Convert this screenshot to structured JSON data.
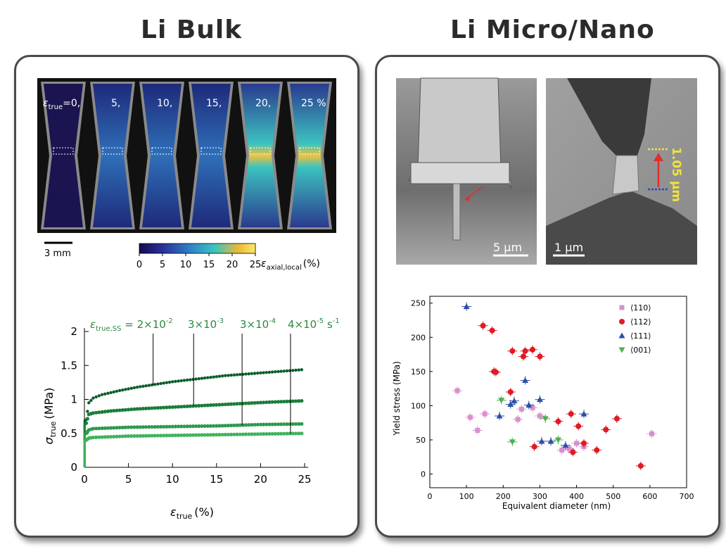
{
  "headings": {
    "left": "Li Bulk",
    "right": "Li Micro/Nano"
  },
  "colors": {
    "dark_green": "#0b5d2a",
    "mid_green": "#1a7d3a",
    "green": "#2e9a4e",
    "light_green": "#3fb35c",
    "label_green": "#2d8a3e",
    "pink": "#d98fd0",
    "red": "#e01b24",
    "blue": "#2b4fa8",
    "bright_green": "#4caf50"
  },
  "bulk_images": {
    "strain_labels": [
      "0,",
      "5,",
      "10,",
      "15,",
      "20,",
      "25 %"
    ],
    "strain_prefix": "ε",
    "strain_prefix_sub": "true",
    "strain_prefix_eq": "=0,",
    "scale_bar": "3 mm",
    "colorbar_ticks": [
      "0",
      "5",
      "10",
      "15",
      "20",
      "25"
    ],
    "colorbar_label": "ε",
    "colorbar_label_sub": "axial,local",
    "colorbar_label_unit": "(%)"
  },
  "nano_images": {
    "left_scale": "5 μm",
    "right_scale": "1 μm",
    "right_annotation": "1.05 μm"
  },
  "chart_data": [
    {
      "type": "scatter",
      "ylabel_symbol": "σ",
      "ylabel_sub": "true",
      "ylabel_unit": "(MPa)",
      "xlabel_symbol": "ε",
      "xlabel_sub": "true",
      "xlabel_unit": "(%)",
      "xlim": [
        0,
        25
      ],
      "ylim": [
        0,
        2
      ],
      "xticks": [
        "0",
        "5",
        "10",
        "15",
        "20",
        "25"
      ],
      "yticks": [
        "0",
        "0.5",
        "1",
        "1.5",
        "2"
      ],
      "rate_header": {
        "symbol": "ε",
        "sub": "true,SS",
        "eq": " = 2×10",
        "labels": [
          {
            "base": "2×10",
            "exp": "-2",
            "suffix": ""
          },
          {
            "base": "3×10",
            "exp": "-3",
            "suffix": ""
          },
          {
            "base": "3×10",
            "exp": "-4",
            "suffix": ""
          },
          {
            "base": "4×10",
            "exp": "-5",
            "suffix": " s",
            "suffix_exp": "-1"
          }
        ]
      },
      "series": [
        {
          "rate": "2×10^-2",
          "color": "#0b5d2a",
          "values": [
            [
              0.2,
              0.7
            ],
            [
              0.5,
              0.95
            ],
            [
              1,
              1.02
            ],
            [
              2,
              1.07
            ],
            [
              4,
              1.13
            ],
            [
              6,
              1.18
            ],
            [
              8,
              1.22
            ],
            [
              10,
              1.26
            ],
            [
              12,
              1.29
            ],
            [
              14,
              1.32
            ],
            [
              16,
              1.35
            ],
            [
              18,
              1.37
            ],
            [
              20,
              1.39
            ],
            [
              22,
              1.41
            ],
            [
              24,
              1.43
            ],
            [
              25,
              1.44
            ]
          ],
          "leader_x": 7.8
        },
        {
          "rate": "3×10^-3",
          "color": "#1a7d3a",
          "values": [
            [
              0.2,
              0.65
            ],
            [
              0.5,
              0.78
            ],
            [
              1,
              0.8
            ],
            [
              3,
              0.83
            ],
            [
              6,
              0.86
            ],
            [
              9,
              0.88
            ],
            [
              12,
              0.9
            ],
            [
              15,
              0.92
            ],
            [
              18,
              0.94
            ],
            [
              21,
              0.96
            ],
            [
              25,
              0.98
            ]
          ],
          "leader_x": 12.4
        },
        {
          "rate": "3×10^-4",
          "color": "#2e9a4e",
          "values": [
            [
              0.2,
              0.5
            ],
            [
              0.5,
              0.55
            ],
            [
              1,
              0.57
            ],
            [
              5,
              0.59
            ],
            [
              10,
              0.6
            ],
            [
              15,
              0.61
            ],
            [
              20,
              0.63
            ],
            [
              25,
              0.64
            ]
          ],
          "leader_x": 17.9
        },
        {
          "rate": "4×10^-5",
          "color": "#3fb35c",
          "values": [
            [
              0.2,
              0.4
            ],
            [
              0.5,
              0.43
            ],
            [
              1,
              0.44
            ],
            [
              5,
              0.46
            ],
            [
              10,
              0.47
            ],
            [
              15,
              0.48
            ],
            [
              20,
              0.49
            ],
            [
              25,
              0.5
            ]
          ],
          "leader_x": 23.4
        }
      ]
    },
    {
      "type": "scatter",
      "xlabel": "Equivalent diameter (nm)",
      "ylabel": "Yield stress (MPa)",
      "xlim": [
        0,
        700
      ],
      "ylim": [
        -20,
        260
      ],
      "xticks": [
        "0",
        "100",
        "200",
        "300",
        "400",
        "500",
        "600",
        "700"
      ],
      "yticks": [
        "0",
        "50",
        "100",
        "150",
        "200",
        "250"
      ],
      "series": [
        {
          "name": "⟨110⟩",
          "marker": "square",
          "color": "#d98fd0",
          "points": [
            [
              75,
              122
            ],
            [
              110,
              83
            ],
            [
              130,
              64
            ],
            [
              150,
              88
            ],
            [
              240,
              80
            ],
            [
              250,
              95
            ],
            [
              280,
              97
            ],
            [
              300,
              85
            ],
            [
              360,
              35
            ],
            [
              380,
              37
            ],
            [
              400,
              45
            ],
            [
              420,
              40
            ],
            [
              605,
              59
            ]
          ]
        },
        {
          "name": "⟨112⟩",
          "marker": "circle",
          "color": "#e01b24",
          "points": [
            [
              145,
              217
            ],
            [
              170,
              210
            ],
            [
              175,
              150
            ],
            [
              180,
              149
            ],
            [
              220,
              120
            ],
            [
              225,
              180
            ],
            [
              255,
              172
            ],
            [
              260,
              180
            ],
            [
              280,
              182
            ],
            [
              300,
              172
            ],
            [
              285,
              40
            ],
            [
              350,
              77
            ],
            [
              385,
              88
            ],
            [
              405,
              70
            ],
            [
              390,
              32
            ],
            [
              420,
              45
            ],
            [
              455,
              35
            ],
            [
              480,
              65
            ],
            [
              510,
              81
            ],
            [
              575,
              12
            ]
          ]
        },
        {
          "name": "⟨111⟩",
          "marker": "triangle",
          "color": "#2b4fa8",
          "points": [
            [
              100,
              245
            ],
            [
              190,
              85
            ],
            [
              220,
              102
            ],
            [
              230,
              107
            ],
            [
              260,
              137
            ],
            [
              270,
              101
            ],
            [
              300,
              109
            ],
            [
              305,
              48
            ],
            [
              330,
              48
            ],
            [
              370,
              42
            ],
            [
              420,
              88
            ]
          ]
        },
        {
          "name": "⟨001⟩",
          "marker": "triangle-down",
          "color": "#4caf50",
          "points": [
            [
              195,
              108
            ],
            [
              225,
              47
            ],
            [
              315,
              81
            ],
            [
              350,
              50
            ]
          ]
        }
      ]
    }
  ]
}
